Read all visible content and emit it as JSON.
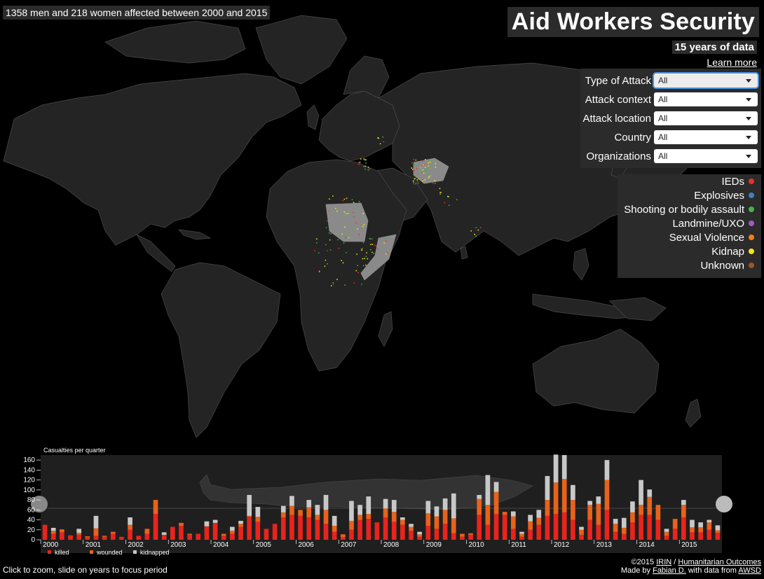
{
  "summary": "1358 men and 218 women affected between 2000 and 2015",
  "title": "Aid Workers Security",
  "subtitle": "15 years of data",
  "learn_more": "Learn more",
  "filters": [
    {
      "label": "Type of Attack",
      "value": "All",
      "active": true
    },
    {
      "label": "Attack context",
      "value": "All"
    },
    {
      "label": "Attack location",
      "value": "All"
    },
    {
      "label": "Country",
      "value": "All"
    },
    {
      "label": "Organizations",
      "value": "All"
    }
  ],
  "legend": [
    {
      "label": "IEDs",
      "color": "#e8312a"
    },
    {
      "label": "Explosives",
      "color": "#3f7fc2"
    },
    {
      "label": "Shooting or bodily assault",
      "color": "#4cae4c"
    },
    {
      "label": "Landmine/UXO",
      "color": "#a05cbf"
    },
    {
      "label": "Sexual Violence",
      "color": "#f07f17"
    },
    {
      "label": "Kidnap",
      "color": "#f4e51a"
    },
    {
      "label": "Unknown",
      "color": "#a3522a"
    }
  ],
  "colors": {
    "killed": "#e8241c",
    "wounded": "#e8621a",
    "kidnapped": "#c8c8c8",
    "panel": "#2b2b2b",
    "land": "#242424",
    "highlight": "#8a8a8a"
  },
  "chart_data": {
    "type": "bar",
    "title": "Casualties per quarter",
    "stacked": true,
    "ylim": [
      0,
      170
    ],
    "yticks": [
      0,
      20,
      40,
      60,
      80,
      100,
      120,
      140,
      160
    ],
    "year_labels": [
      "2000",
      "2001",
      "2002",
      "2003",
      "2004",
      "2005",
      "2006",
      "2007",
      "2008",
      "2009",
      "2010",
      "2011",
      "2012",
      "2013",
      "2014",
      "2015"
    ],
    "legend_position": "bottom-left",
    "series": [
      {
        "name": "killed",
        "values": [
          30,
          12,
          15,
          9,
          10,
          5,
          8,
          6,
          12,
          6,
          20,
          8,
          12,
          52,
          10,
          26,
          28,
          10,
          12,
          27,
          34,
          8,
          12,
          26,
          46,
          36,
          22,
          32,
          45,
          50,
          48,
          45,
          40,
          32,
          16,
          5,
          20,
          40,
          42,
          35,
          45,
          36,
          30,
          18,
          6,
          28,
          22,
          32,
          13,
          6,
          10,
          50,
          30,
          52,
          50,
          22,
          6,
          20,
          30,
          48,
          52,
          55,
          40,
          10,
          40,
          30,
          60,
          16,
          12,
          35,
          50,
          50,
          40,
          8,
          22,
          45,
          15,
          15,
          20,
          14
        ]
      },
      {
        "name": "wounded",
        "values": [
          0,
          6,
          6,
          0,
          4,
          2,
          15,
          2,
          4,
          0,
          10,
          0,
          10,
          28,
          0,
          0,
          6,
          2,
          0,
          0,
          0,
          4,
          6,
          6,
          2,
          10,
          0,
          0,
          10,
          18,
          12,
          20,
          10,
          28,
          12,
          6,
          18,
          10,
          10,
          0,
          18,
          20,
          10,
          8,
          5,
          25,
          25,
          28,
          30,
          6,
          3,
          32,
          40,
          44,
          6,
          25,
          6,
          17,
          14,
          32,
          63,
          67,
          40,
          10,
          30,
          42,
          60,
          16,
          12,
          20,
          20,
          36,
          30,
          8,
          20,
          25,
          10,
          10,
          15,
          5
        ]
      },
      {
        "name": "kidnapped",
        "values": [
          0,
          6,
          0,
          0,
          8,
          0,
          25,
          0,
          0,
          0,
          15,
          0,
          0,
          0,
          5,
          0,
          0,
          0,
          0,
          10,
          6,
          0,
          8,
          6,
          42,
          20,
          0,
          0,
          13,
          20,
          0,
          15,
          20,
          30,
          20,
          0,
          40,
          20,
          35,
          0,
          19,
          24,
          5,
          6,
          5,
          25,
          20,
          23,
          50,
          0,
          0,
          8,
          60,
          20,
          0,
          10,
          4,
          13,
          16,
          48,
          56,
          48,
          30,
          6,
          8,
          15,
          40,
          10,
          20,
          22,
          50,
          15,
          0,
          6,
          0,
          10,
          15,
          10,
          5,
          10
        ]
      }
    ],
    "legend_labels": [
      "killed",
      "wounded",
      "kidnapped"
    ]
  },
  "footer_left": "Click to zoom, slide on years to focus period",
  "footer_right": {
    "copy": "©2015",
    "irin": "IRIN",
    "sep": "/",
    "ho": "Humanitarian Outcomes",
    "made_by": "Made by",
    "author": "Fabian D.",
    "with_data": "with data from",
    "awsd": "AWSD"
  }
}
